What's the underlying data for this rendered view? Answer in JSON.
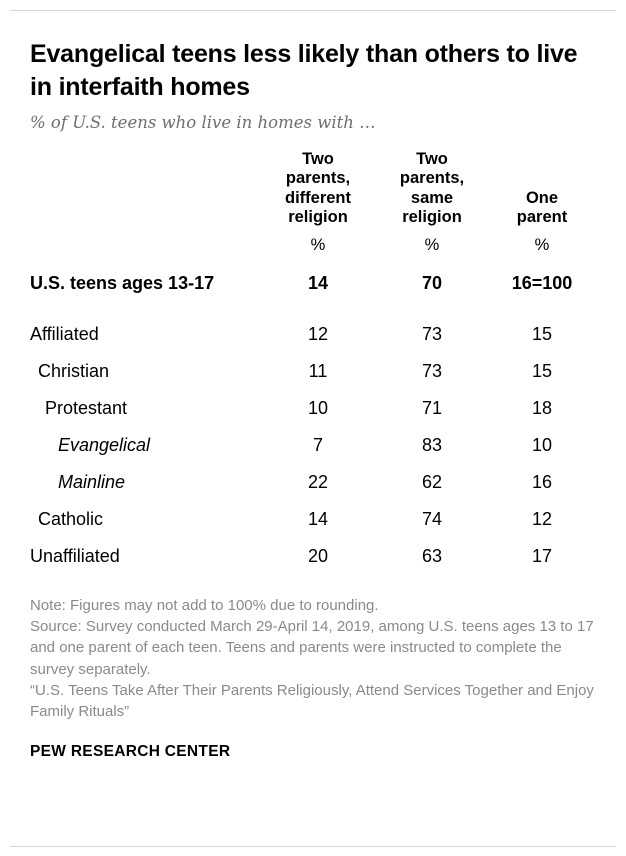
{
  "header": {
    "title": "Evangelical teens less likely than others to live in interfaith homes",
    "subtitle": "% of U.S. teens who live in homes with …"
  },
  "chart_data": {
    "type": "table",
    "columns": [
      "Two\nparents,\ndifferent\nreligion",
      "Two\nparents,\nsame\nreligion",
      "One\nparent"
    ],
    "unit_row": [
      "%",
      "%",
      "%"
    ],
    "rows": [
      {
        "label": "U.S. teens ages 13-17",
        "values": [
          "14",
          "70",
          "16=100"
        ]
      },
      {
        "label": "Affiliated",
        "values": [
          "12",
          "73",
          "15"
        ]
      },
      {
        "label": "Christian",
        "values": [
          "11",
          "73",
          "15"
        ]
      },
      {
        "label": "Protestant",
        "values": [
          "10",
          "71",
          "18"
        ]
      },
      {
        "label": "Evangelical",
        "values": [
          "7",
          "83",
          "10"
        ]
      },
      {
        "label": "Mainline",
        "values": [
          "22",
          "62",
          "16"
        ]
      },
      {
        "label": "Catholic",
        "values": [
          "14",
          "74",
          "12"
        ]
      },
      {
        "label": "Unaffiliated",
        "values": [
          "20",
          "63",
          "17"
        ]
      }
    ]
  },
  "footer": {
    "note": "Note: Figures may not add to 100% due to rounding.",
    "source": "Source: Survey conducted March 29-April 14, 2019, among U.S. teens ages 13 to 17 and one parent of each teen. Teens and parents were instructed to complete the survey separately.",
    "report": "“U.S. Teens Take After Their Parents Religiously, Attend Services Together and Enjoy Family Rituals”",
    "brand": "PEW RESEARCH CENTER"
  }
}
